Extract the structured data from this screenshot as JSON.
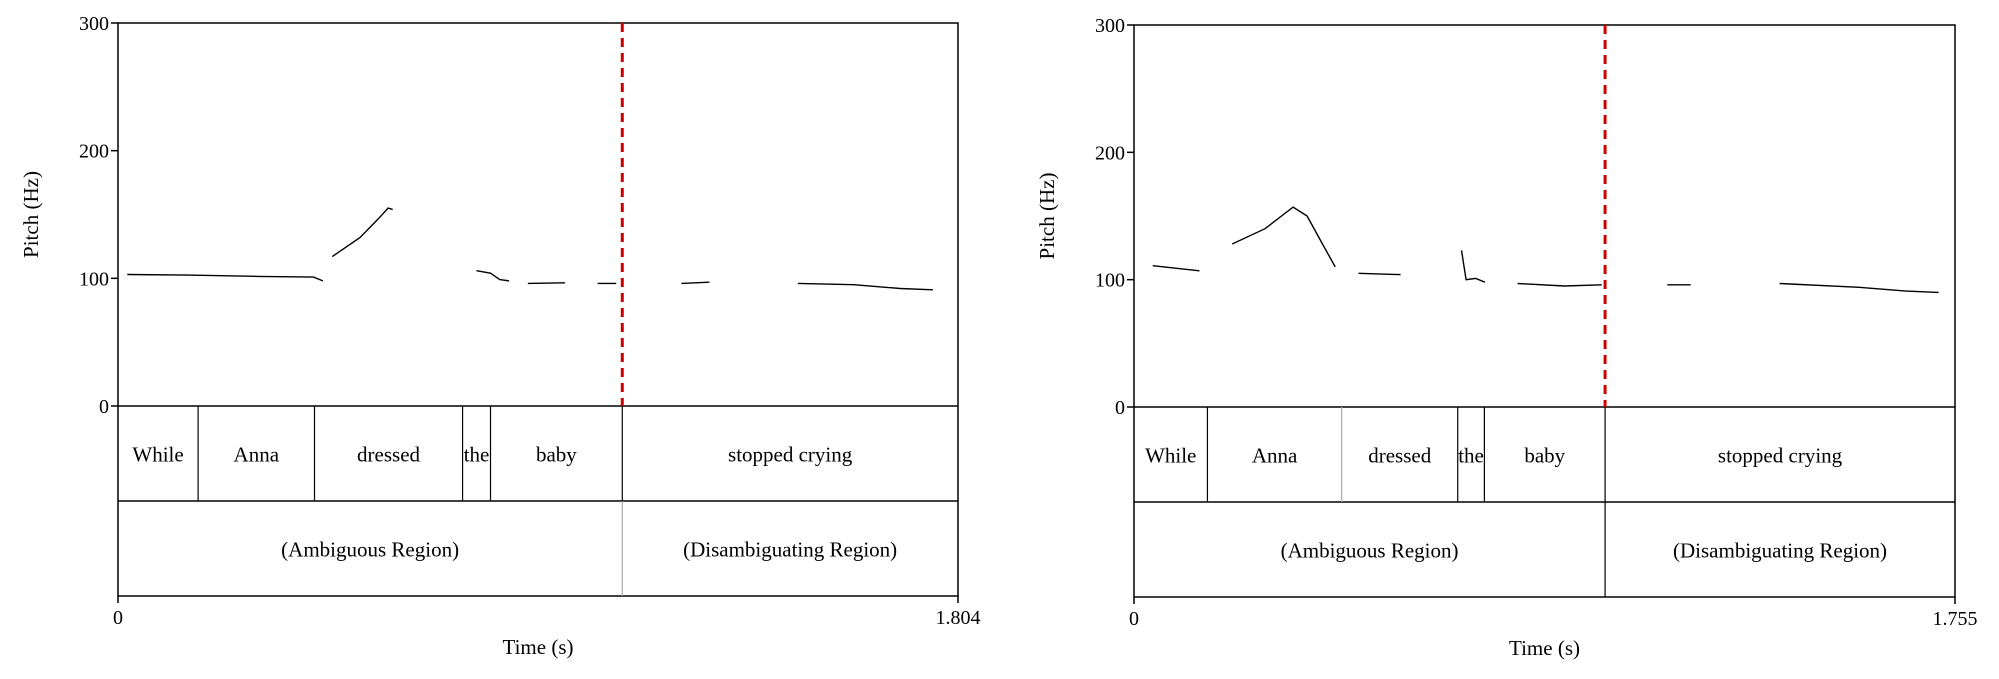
{
  "colors": {
    "axis": "#000000",
    "pitch": "#000000",
    "boundary_marker": "#cc0000",
    "divider_soft": "#aaaaaa"
  },
  "chart_data": [
    {
      "type": "line",
      "ylabel": "Pitch (Hz)",
      "xlabel": "Time (s)",
      "ylim": [
        0,
        300
      ],
      "yticks": [
        0,
        100,
        200,
        300
      ],
      "xlim": [
        0,
        1.804
      ],
      "xtick_labels": [
        "0",
        "1.804"
      ],
      "disambiguation_point": 1.083,
      "series": [
        {
          "x": [
            0.02,
            0.15,
            0.3,
            0.42,
            0.44
          ],
          "y": [
            103,
            102.5,
            101.5,
            101,
            98
          ]
        },
        {
          "x": [
            0.46,
            0.52,
            0.56,
            0.58,
            0.59
          ],
          "y": [
            117,
            132,
            147,
            155,
            154
          ]
        },
        {
          "x": [
            0.77,
            0.8,
            0.82,
            0.84
          ],
          "y": [
            106,
            104,
            99,
            98
          ]
        },
        {
          "x": [
            0.88,
            0.96
          ],
          "y": [
            96,
            96.5
          ]
        },
        {
          "x": [
            1.03,
            1.07
          ],
          "y": [
            96,
            96
          ]
        },
        {
          "x": [
            1.21,
            1.27
          ],
          "y": [
            96,
            97
          ]
        },
        {
          "x": [
            1.46,
            1.58,
            1.68,
            1.75
          ],
          "y": [
            96,
            95,
            92,
            91
          ]
        }
      ],
      "words": [
        {
          "label": "While",
          "start": 0,
          "end": 0.172
        },
        {
          "label": "Anna",
          "start": 0.172,
          "end": 0.422
        },
        {
          "label": "dressed",
          "start": 0.422,
          "end": 0.74
        },
        {
          "label": "the",
          "start": 0.74,
          "end": 0.8
        },
        {
          "label": "baby",
          "start": 0.8,
          "end": 1.083
        },
        {
          "label": "stopped crying",
          "start": 1.083,
          "end": 1.804
        }
      ],
      "regions": [
        {
          "label": "(Ambiguous Region)",
          "start": 0,
          "end": 1.083
        },
        {
          "label": "(Disambiguating Region)",
          "start": 1.083,
          "end": 1.804
        }
      ]
    },
    {
      "type": "line",
      "ylabel": "Pitch (Hz)",
      "xlabel": "Time (s)",
      "ylim": [
        0,
        300
      ],
      "yticks": [
        0,
        100,
        200,
        300
      ],
      "xlim": [
        0,
        1.755
      ],
      "xtick_labels": [
        "0",
        "1.755"
      ],
      "disambiguation_point": 1.007,
      "series": [
        {
          "x": [
            0.04,
            0.14
          ],
          "y": [
            111,
            107
          ]
        },
        {
          "x": [
            0.21,
            0.28,
            0.34,
            0.37,
            0.4,
            0.43
          ],
          "y": [
            128,
            140,
            157,
            150,
            130,
            110
          ]
        },
        {
          "x": [
            0.48,
            0.57
          ],
          "y": [
            105,
            104
          ]
        },
        {
          "x": [
            0.7,
            0.71,
            0.73,
            0.75
          ],
          "y": [
            123,
            100,
            101,
            98
          ]
        },
        {
          "x": [
            0.82,
            0.92,
            1.0
          ],
          "y": [
            97,
            95,
            96
          ]
        },
        {
          "x": [
            1.14,
            1.19
          ],
          "y": [
            96,
            96
          ]
        },
        {
          "x": [
            1.38,
            1.55,
            1.65,
            1.72
          ],
          "y": [
            97,
            94,
            91,
            90
          ]
        }
      ],
      "words": [
        {
          "label": "While",
          "start": 0,
          "end": 0.157
        },
        {
          "label": "Anna",
          "start": 0.157,
          "end": 0.444
        },
        {
          "label": "dressed",
          "start": 0.444,
          "end": 0.692
        },
        {
          "label": "the",
          "start": 0.692,
          "end": 0.749
        },
        {
          "label": "baby",
          "start": 0.749,
          "end": 1.007
        },
        {
          "label": "stopped crying",
          "start": 1.007,
          "end": 1.755
        }
      ],
      "regions": [
        {
          "label": "(Ambiguous Region)",
          "start": 0,
          "end": 1.007
        },
        {
          "label": "(Disambiguating Region)",
          "start": 1.007,
          "end": 1.755
        }
      ]
    }
  ]
}
